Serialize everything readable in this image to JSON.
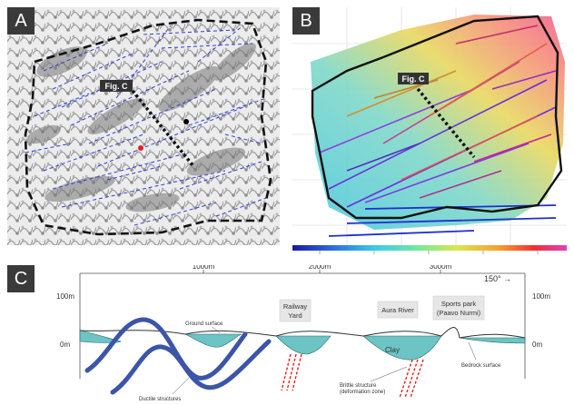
{
  "panels": {
    "a": {
      "label": "A",
      "figc_label": "Fig. C"
    },
    "b": {
      "label": "B",
      "figc_label": "Fig. C"
    },
    "c": {
      "label": "C"
    }
  },
  "cross_section": {
    "distance_ticks": [
      "1000m",
      "2000m",
      "3000m"
    ],
    "elevation_left": [
      "100m",
      "0m"
    ],
    "elevation_right": [
      "100m",
      "0m"
    ],
    "bearing": "150° →",
    "boxed_labels": {
      "railway_yard": [
        "Railway",
        "Yard"
      ],
      "aura_river": "Aura River",
      "sports_park": [
        "Sports park",
        "(Paavo Nurmi)"
      ]
    },
    "annotations": {
      "ground_surface": "Ground surface",
      "clay": "Clay",
      "bedrock_surface": "Bedrock surface",
      "ductile_structures": "Ductile structures",
      "brittle_structure": [
        "Brittle structure",
        "(deformation zone)"
      ]
    }
  },
  "colors": {
    "lineament_blue": "#2b3fd6",
    "boundary": "#111111",
    "clay_fill": "#6cc4c4",
    "ductile_fold": "#3c55a8",
    "brittle_fault": "#e02020",
    "colorbar": [
      "#1a1aa0",
      "#2c6fe0",
      "#3ec9e8",
      "#6fe8a0",
      "#d8e84a",
      "#f7a030",
      "#f03030",
      "#e040c0"
    ]
  }
}
